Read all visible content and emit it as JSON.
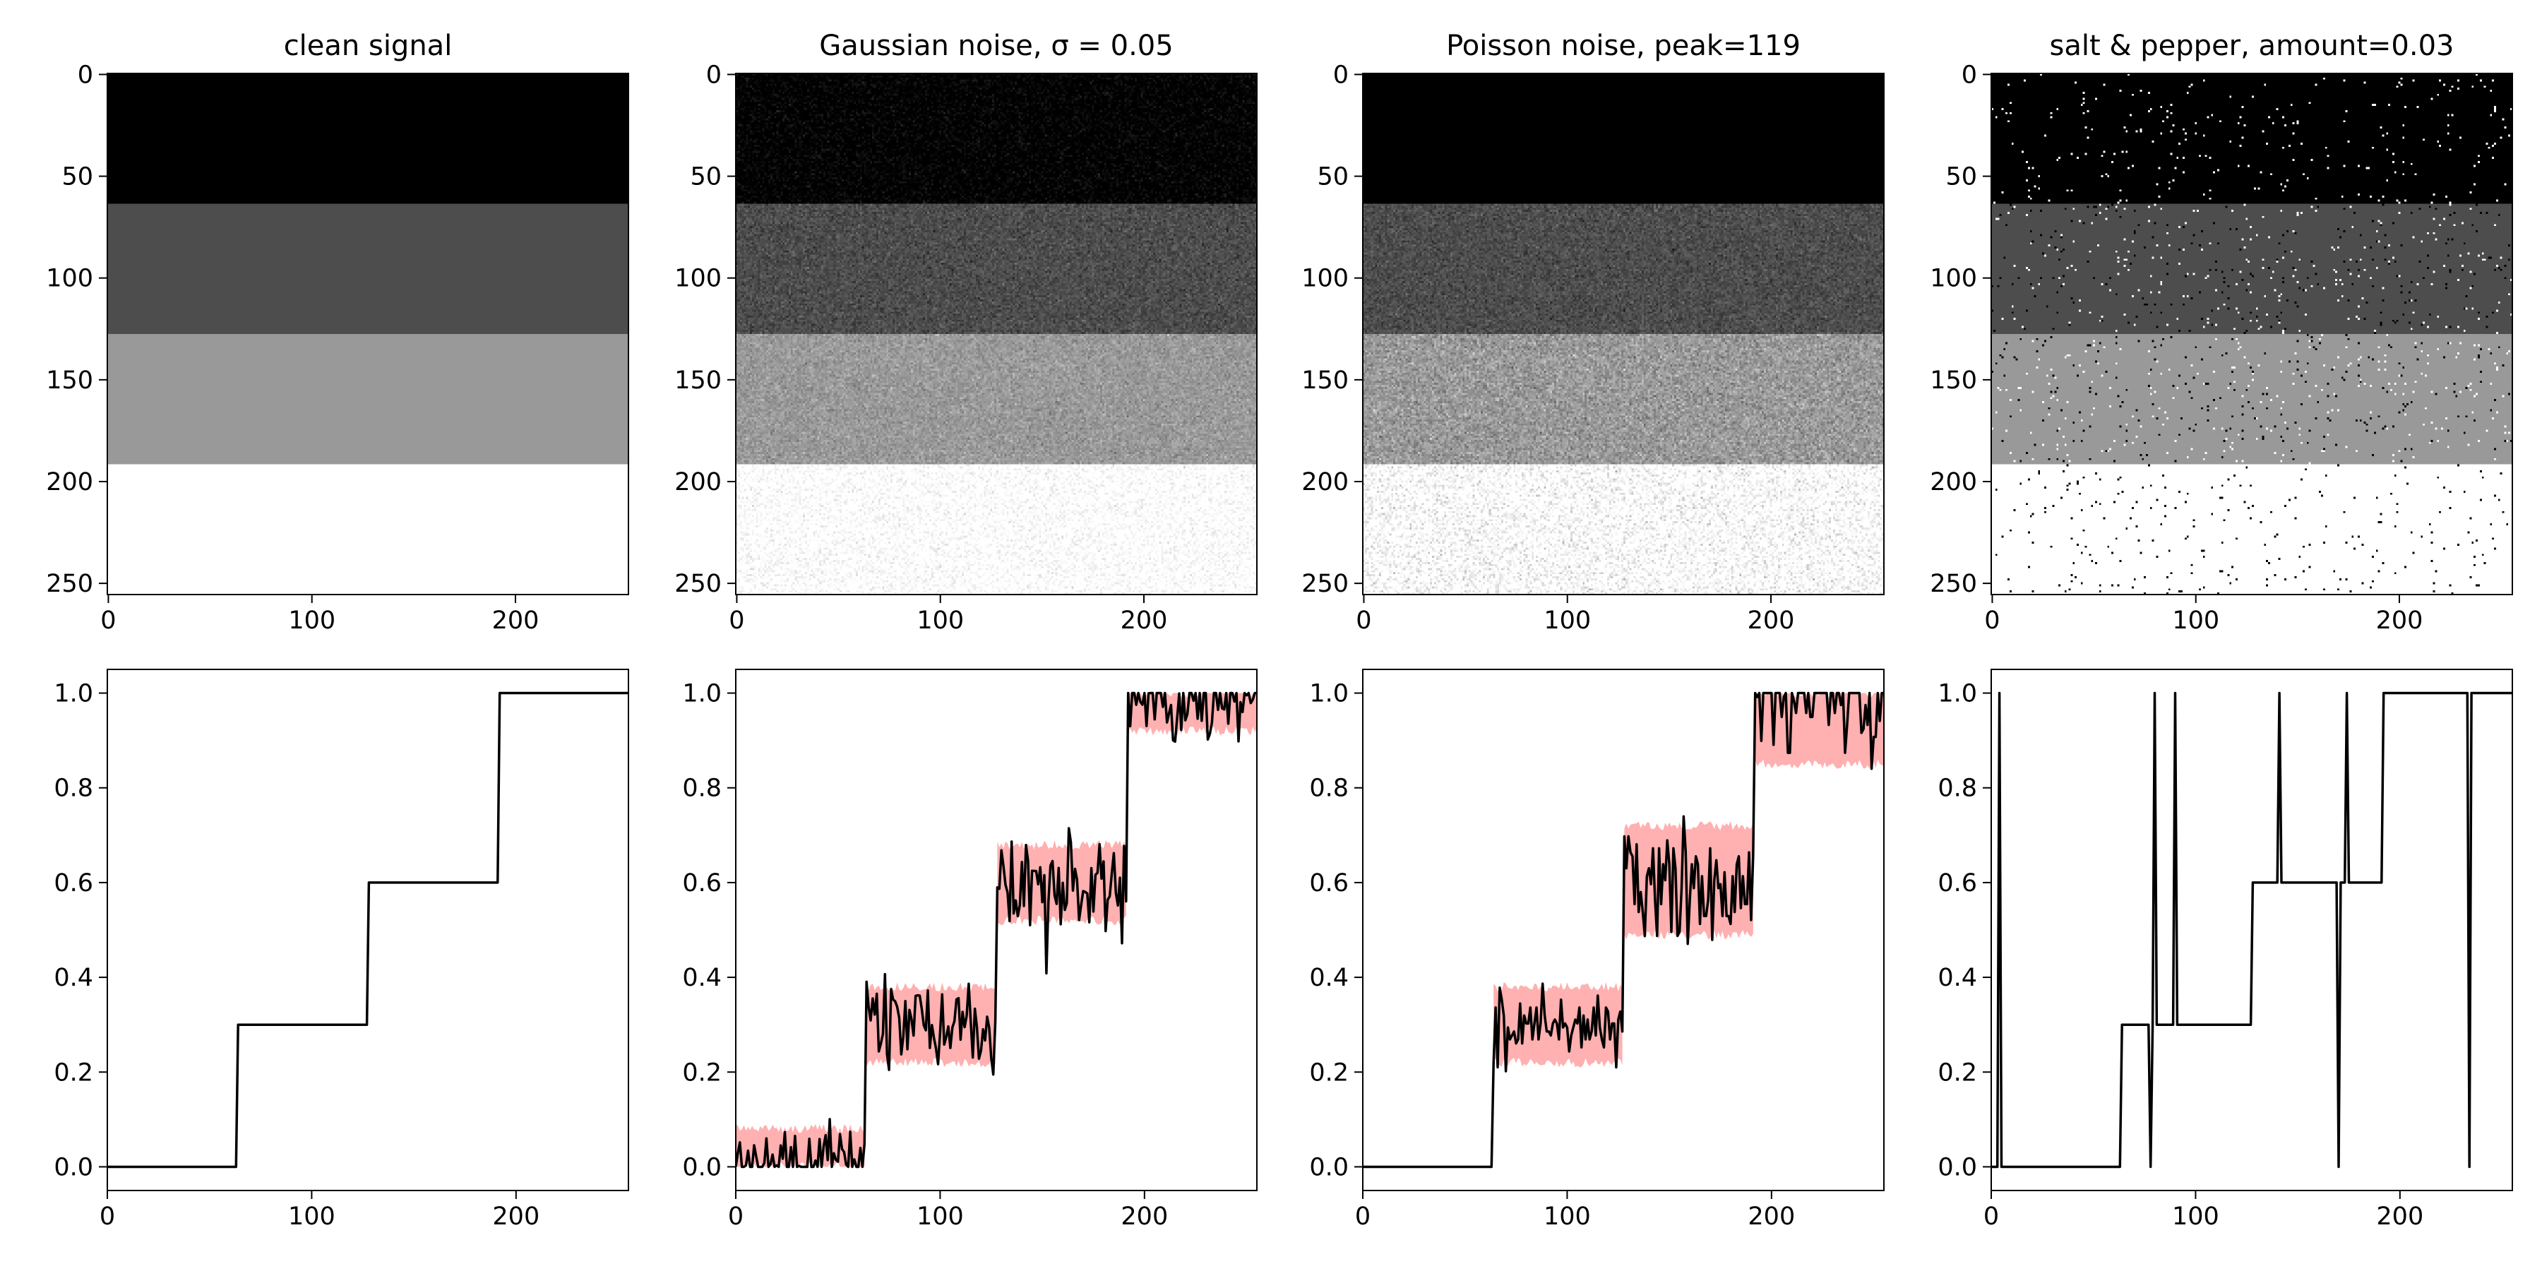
{
  "chart_data": [
    {
      "type": "heatmap",
      "panel": "image",
      "title": "clean signal",
      "xlim": [
        0,
        255
      ],
      "ylim": [
        255,
        0
      ],
      "xticks": [
        0,
        100,
        200
      ],
      "yticks": [
        0,
        50,
        100,
        150,
        200,
        250
      ],
      "bands": [
        {
          "rows": [
            0,
            63
          ],
          "value": 0.0
        },
        {
          "rows": [
            64,
            127
          ],
          "value": 0.3
        },
        {
          "rows": [
            128,
            191
          ],
          "value": 0.6
        },
        {
          "rows": [
            192,
            255
          ],
          "value": 1.0
        }
      ],
      "noise": {
        "kind": "none"
      }
    },
    {
      "type": "heatmap",
      "panel": "image",
      "title": "Gaussian noise, σ = 0.05",
      "xlim": [
        0,
        255
      ],
      "ylim": [
        255,
        0
      ],
      "xticks": [
        0,
        100,
        200
      ],
      "yticks": [
        0,
        50,
        100,
        150,
        200,
        250
      ],
      "bands": [
        {
          "rows": [
            0,
            63
          ],
          "value": 0.0
        },
        {
          "rows": [
            64,
            127
          ],
          "value": 0.3
        },
        {
          "rows": [
            128,
            191
          ],
          "value": 0.6
        },
        {
          "rows": [
            192,
            255
          ],
          "value": 1.0
        }
      ],
      "noise": {
        "kind": "gaussian",
        "sigma": 0.05
      }
    },
    {
      "type": "heatmap",
      "panel": "image",
      "title": "Poisson noise, peak=119",
      "xlim": [
        0,
        255
      ],
      "ylim": [
        255,
        0
      ],
      "xticks": [
        0,
        100,
        200
      ],
      "yticks": [
        0,
        50,
        100,
        150,
        200,
        250
      ],
      "bands": [
        {
          "rows": [
            0,
            63
          ],
          "value": 0.0
        },
        {
          "rows": [
            64,
            127
          ],
          "value": 0.3
        },
        {
          "rows": [
            128,
            191
          ],
          "value": 0.6
        },
        {
          "rows": [
            192,
            255
          ],
          "value": 1.0
        }
      ],
      "noise": {
        "kind": "poisson",
        "peak": 119
      }
    },
    {
      "type": "heatmap",
      "panel": "image",
      "title": "salt & pepper, amount=0.03",
      "xlim": [
        0,
        255
      ],
      "ylim": [
        255,
        0
      ],
      "xticks": [
        0,
        100,
        200
      ],
      "yticks": [
        0,
        50,
        100,
        150,
        200,
        250
      ],
      "bands": [
        {
          "rows": [
            0,
            63
          ],
          "value": 0.0
        },
        {
          "rows": [
            64,
            127
          ],
          "value": 0.3
        },
        {
          "rows": [
            128,
            191
          ],
          "value": 0.6
        },
        {
          "rows": [
            192,
            255
          ],
          "value": 1.0
        }
      ],
      "noise": {
        "kind": "salt_pepper",
        "amount": 0.03
      }
    },
    {
      "type": "line",
      "panel": "profile",
      "xlim": [
        0,
        255
      ],
      "ylim": [
        -0.05,
        1.05
      ],
      "xticks": [
        0,
        100,
        200
      ],
      "yticks": [
        0.0,
        0.2,
        0.4,
        0.6,
        0.8,
        1.0
      ],
      "line_color": "#000000",
      "steps": [
        {
          "x": [
            0,
            63
          ],
          "y": 0.0
        },
        {
          "x": [
            64,
            127
          ],
          "y": 0.3
        },
        {
          "x": [
            128,
            191
          ],
          "y": 0.6
        },
        {
          "x": [
            192,
            255
          ],
          "y": 1.0
        }
      ],
      "band": null
    },
    {
      "type": "line",
      "panel": "profile",
      "xlim": [
        0,
        255
      ],
      "ylim": [
        -0.05,
        1.05
      ],
      "xticks": [
        0,
        100,
        200
      ],
      "yticks": [
        0.0,
        0.2,
        0.4,
        0.6,
        0.8,
        1.0
      ],
      "line_color": "#000000",
      "band_color": "#ffb0b0",
      "steps": [
        {
          "x": [
            0,
            63
          ],
          "y": 0.0
        },
        {
          "x": [
            64,
            127
          ],
          "y": 0.3
        },
        {
          "x": [
            128,
            191
          ],
          "y": 0.6
        },
        {
          "x": [
            192,
            255
          ],
          "y": 1.0
        }
      ],
      "band": [
        {
          "x": [
            0,
            63
          ],
          "low": 0.0,
          "high": 0.08
        },
        {
          "x": [
            64,
            127
          ],
          "low": 0.22,
          "high": 0.38
        },
        {
          "x": [
            128,
            191
          ],
          "low": 0.52,
          "high": 0.68
        },
        {
          "x": [
            192,
            255
          ],
          "low": 0.92,
          "high": 1.0
        }
      ],
      "noise": {
        "kind": "gaussian",
        "sigma": 0.05,
        "clip": [
          0,
          1
        ]
      }
    },
    {
      "type": "line",
      "panel": "profile",
      "xlim": [
        0,
        255
      ],
      "ylim": [
        -0.05,
        1.05
      ],
      "xticks": [
        0,
        100,
        200
      ],
      "yticks": [
        0.0,
        0.2,
        0.4,
        0.6,
        0.8,
        1.0
      ],
      "line_color": "#000000",
      "band_color": "#ffb0b0",
      "steps": [
        {
          "x": [
            0,
            63
          ],
          "y": 0.0
        },
        {
          "x": [
            64,
            127
          ],
          "y": 0.3
        },
        {
          "x": [
            128,
            191
          ],
          "y": 0.6
        },
        {
          "x": [
            192,
            255
          ],
          "y": 1.0
        }
      ],
      "band": [
        {
          "x": [
            0,
            63
          ],
          "low": 0.0,
          "high": 0.0
        },
        {
          "x": [
            64,
            127
          ],
          "low": 0.22,
          "high": 0.38
        },
        {
          "x": [
            128,
            191
          ],
          "low": 0.49,
          "high": 0.72
        },
        {
          "x": [
            192,
            255
          ],
          "low": 0.85,
          "high": 1.0
        }
      ],
      "noise": {
        "kind": "poisson",
        "peak": 119,
        "clip": [
          0,
          1
        ]
      }
    },
    {
      "type": "line",
      "panel": "profile",
      "xlim": [
        0,
        255
      ],
      "ylim": [
        -0.05,
        1.05
      ],
      "xticks": [
        0,
        100,
        200
      ],
      "yticks": [
        0.0,
        0.2,
        0.4,
        0.6,
        0.8,
        1.0
      ],
      "line_color": "#000000",
      "steps": [
        {
          "x": [
            0,
            63
          ],
          "y": 0.0
        },
        {
          "x": [
            64,
            127
          ],
          "y": 0.3
        },
        {
          "x": [
            128,
            191
          ],
          "y": 0.6
        },
        {
          "x": [
            192,
            255
          ],
          "y": 1.0
        }
      ],
      "band": null,
      "spikes": [
        {
          "x": 4,
          "y": 1.0
        },
        {
          "x": 78,
          "y": 0.0
        },
        {
          "x": 80,
          "y": 1.0
        },
        {
          "x": 90,
          "y": 1.0
        },
        {
          "x": 141,
          "y": 1.0
        },
        {
          "x": 174,
          "y": 1.0
        },
        {
          "x": 170,
          "y": 0.0
        },
        {
          "x": 234,
          "y": 0.0
        }
      ]
    }
  ]
}
